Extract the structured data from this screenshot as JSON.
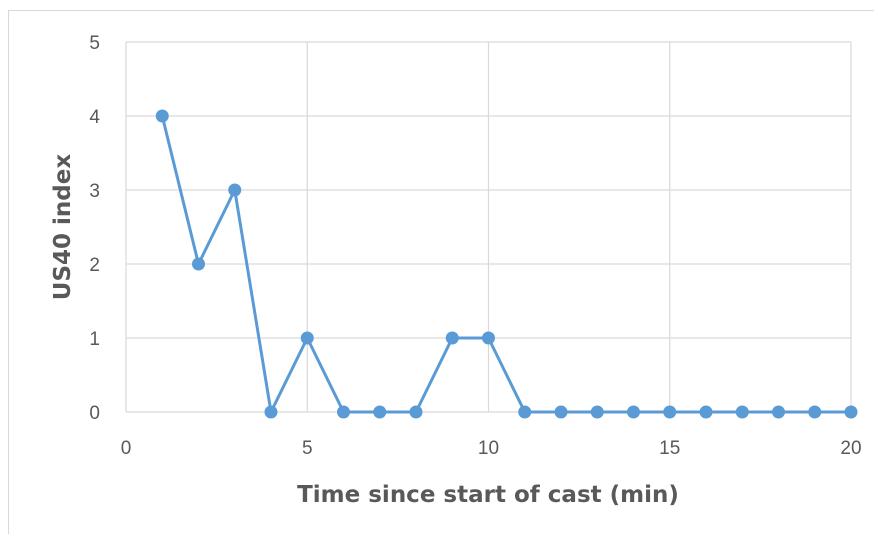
{
  "chart_data": {
    "type": "line",
    "title": "",
    "xlabel": "Time since start of cast (min)",
    "ylabel": "US40 index",
    "xlim": [
      0,
      20
    ],
    "ylim": [
      0,
      5
    ],
    "xticks": [
      0,
      5,
      10,
      15,
      20
    ],
    "yticks": [
      0,
      1,
      2,
      3,
      4,
      5
    ],
    "grid": true,
    "legend": "none",
    "series": [
      {
        "color": "#5b9bd5",
        "x": [
          1,
          2,
          3,
          4,
          5,
          6,
          7,
          8,
          9,
          10,
          11,
          12,
          13,
          14,
          15,
          16,
          17,
          18,
          19,
          20
        ],
        "y": [
          4,
          2,
          3,
          0,
          1,
          0,
          0,
          0,
          1,
          1,
          0,
          0,
          0,
          0,
          0,
          0,
          0,
          0,
          0,
          0
        ]
      }
    ],
    "gridColor": "#d9d9d9",
    "textColor": "#595959"
  }
}
